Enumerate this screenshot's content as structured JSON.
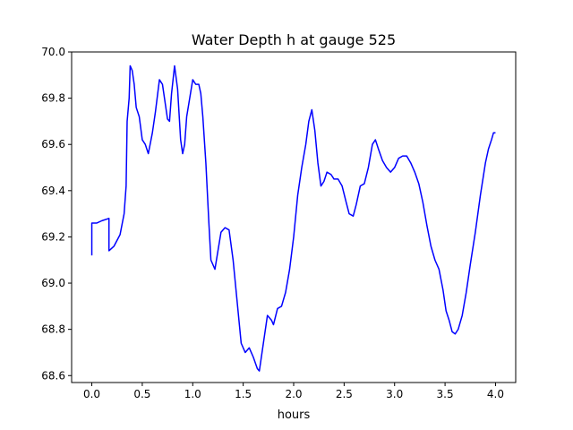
{
  "chart_data": {
    "type": "line",
    "title": "Water Depth h at gauge 525",
    "xlabel": "hours",
    "ylabel": "",
    "xlim": [
      -0.2,
      4.2
    ],
    "ylim": [
      68.57,
      70.0
    ],
    "xticks": [
      0.0,
      0.5,
      1.0,
      1.5,
      2.0,
      2.5,
      3.0,
      3.5,
      4.0
    ],
    "xtick_labels": [
      "0.0",
      "0.5",
      "1.0",
      "1.5",
      "2.0",
      "2.5",
      "3.0",
      "3.5",
      "4.0"
    ],
    "yticks": [
      68.6,
      68.8,
      69.0,
      69.2,
      69.4,
      69.6,
      69.8,
      70.0
    ],
    "ytick_labels": [
      "68.6",
      "68.8",
      "69.0",
      "69.2",
      "69.4",
      "69.6",
      "69.8",
      "70.0"
    ],
    "grid": false,
    "series": [
      {
        "color": "#0000ff",
        "points": [
          [
            0.0,
            69.12
          ],
          [
            0.0,
            69.26
          ],
          [
            0.05,
            69.26
          ],
          [
            0.1,
            69.27
          ],
          [
            0.17,
            69.28
          ],
          [
            0.17,
            69.14
          ],
          [
            0.22,
            69.16
          ],
          [
            0.28,
            69.21
          ],
          [
            0.32,
            69.3
          ],
          [
            0.34,
            69.42
          ],
          [
            0.35,
            69.7
          ],
          [
            0.37,
            69.8
          ],
          [
            0.38,
            69.94
          ],
          [
            0.4,
            69.92
          ],
          [
            0.42,
            69.86
          ],
          [
            0.44,
            69.76
          ],
          [
            0.47,
            69.72
          ],
          [
            0.5,
            69.62
          ],
          [
            0.53,
            69.6
          ],
          [
            0.56,
            69.56
          ],
          [
            0.6,
            69.65
          ],
          [
            0.63,
            69.74
          ],
          [
            0.67,
            69.88
          ],
          [
            0.7,
            69.86
          ],
          [
            0.72,
            69.8
          ],
          [
            0.75,
            69.71
          ],
          [
            0.77,
            69.7
          ],
          [
            0.79,
            69.82
          ],
          [
            0.82,
            69.94
          ],
          [
            0.85,
            69.84
          ],
          [
            0.88,
            69.62
          ],
          [
            0.9,
            69.56
          ],
          [
            0.92,
            69.6
          ],
          [
            0.94,
            69.72
          ],
          [
            0.97,
            69.8
          ],
          [
            1.0,
            69.88
          ],
          [
            1.03,
            69.86
          ],
          [
            1.06,
            69.86
          ],
          [
            1.08,
            69.82
          ],
          [
            1.1,
            69.72
          ],
          [
            1.13,
            69.52
          ],
          [
            1.16,
            69.26
          ],
          [
            1.18,
            69.1
          ],
          [
            1.22,
            69.06
          ],
          [
            1.25,
            69.14
          ],
          [
            1.28,
            69.22
          ],
          [
            1.32,
            69.24
          ],
          [
            1.36,
            69.23
          ],
          [
            1.4,
            69.1
          ],
          [
            1.44,
            68.92
          ],
          [
            1.48,
            68.74
          ],
          [
            1.52,
            68.7
          ],
          [
            1.56,
            68.72
          ],
          [
            1.6,
            68.68
          ],
          [
            1.64,
            68.63
          ],
          [
            1.66,
            68.62
          ],
          [
            1.7,
            68.74
          ],
          [
            1.74,
            68.86
          ],
          [
            1.78,
            68.84
          ],
          [
            1.8,
            68.82
          ],
          [
            1.84,
            68.89
          ],
          [
            1.88,
            68.9
          ],
          [
            1.92,
            68.96
          ],
          [
            1.96,
            69.06
          ],
          [
            2.0,
            69.2
          ],
          [
            2.04,
            69.38
          ],
          [
            2.08,
            69.5
          ],
          [
            2.12,
            69.6
          ],
          [
            2.15,
            69.7
          ],
          [
            2.18,
            69.75
          ],
          [
            2.21,
            69.66
          ],
          [
            2.24,
            69.52
          ],
          [
            2.27,
            69.42
          ],
          [
            2.3,
            69.44
          ],
          [
            2.33,
            69.48
          ],
          [
            2.37,
            69.47
          ],
          [
            2.4,
            69.45
          ],
          [
            2.44,
            69.45
          ],
          [
            2.48,
            69.42
          ],
          [
            2.52,
            69.35
          ],
          [
            2.55,
            69.3
          ],
          [
            2.59,
            69.29
          ],
          [
            2.62,
            69.34
          ],
          [
            2.66,
            69.42
          ],
          [
            2.7,
            69.43
          ],
          [
            2.74,
            69.5
          ],
          [
            2.78,
            69.6
          ],
          [
            2.81,
            69.62
          ],
          [
            2.84,
            69.58
          ],
          [
            2.88,
            69.53
          ],
          [
            2.92,
            69.5
          ],
          [
            2.96,
            69.48
          ],
          [
            3.0,
            69.5
          ],
          [
            3.04,
            69.54
          ],
          [
            3.08,
            69.55
          ],
          [
            3.12,
            69.55
          ],
          [
            3.16,
            69.52
          ],
          [
            3.2,
            69.48
          ],
          [
            3.24,
            69.43
          ],
          [
            3.28,
            69.35
          ],
          [
            3.32,
            69.25
          ],
          [
            3.36,
            69.16
          ],
          [
            3.4,
            69.1
          ],
          [
            3.44,
            69.06
          ],
          [
            3.48,
            68.97
          ],
          [
            3.51,
            68.88
          ],
          [
            3.54,
            68.84
          ],
          [
            3.57,
            68.79
          ],
          [
            3.6,
            68.78
          ],
          [
            3.63,
            68.8
          ],
          [
            3.67,
            68.86
          ],
          [
            3.71,
            68.96
          ],
          [
            3.75,
            69.08
          ],
          [
            3.8,
            69.22
          ],
          [
            3.85,
            69.38
          ],
          [
            3.9,
            69.52
          ],
          [
            3.93,
            69.58
          ],
          [
            3.96,
            69.62
          ],
          [
            3.98,
            69.65
          ],
          [
            4.0,
            69.65
          ]
        ]
      }
    ]
  }
}
